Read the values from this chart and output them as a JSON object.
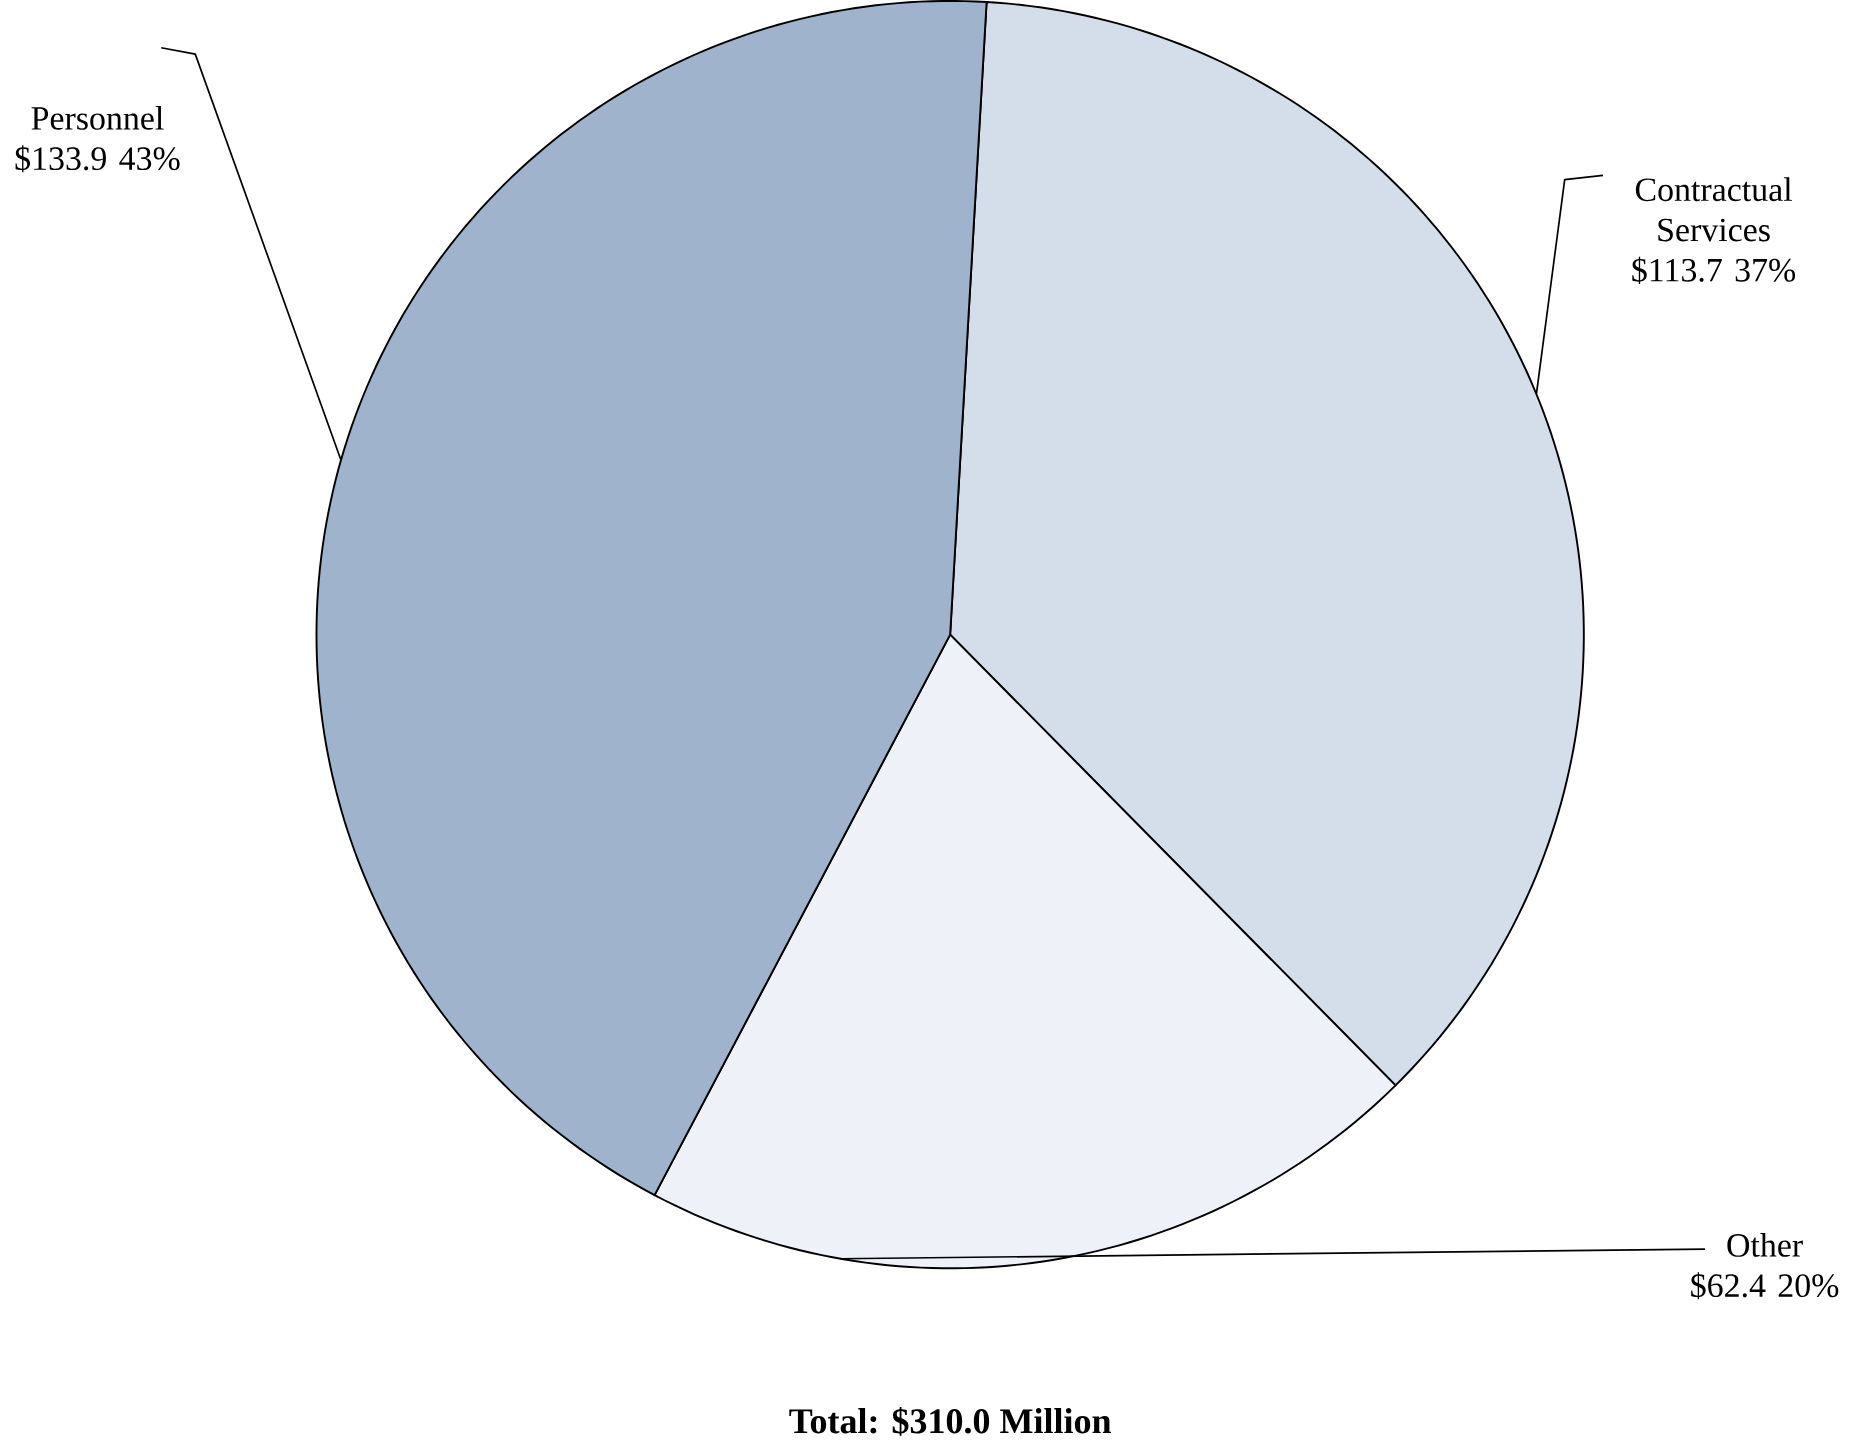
{
  "chart_data": {
    "type": "pie",
    "title": "Total:  $310.0 Million",
    "categories": [
      "Contractual Services",
      "Other",
      "Personnel"
    ],
    "values": [
      113.7,
      62.4,
      133.9
    ],
    "value_labels": [
      "$113.7 37%",
      "$62.4 20%",
      "$133.9 43%"
    ],
    "colors": [
      "#d3deea",
      "#eef2f8",
      "#9fb4cc"
    ]
  }
}
